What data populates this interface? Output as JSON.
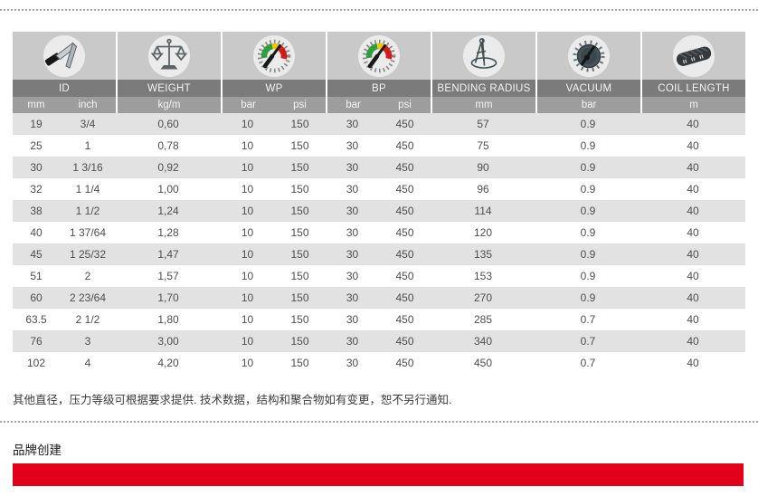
{
  "table": {
    "columns": [
      {
        "label": "ID",
        "units": [
          "mm",
          "inch"
        ],
        "icon": "caliper-icon"
      },
      {
        "label": "WEIGHT",
        "units": [
          "kg/m"
        ],
        "icon": "scale-icon"
      },
      {
        "label": "WP",
        "units": [
          "bar",
          "psi"
        ],
        "icon": "pressure-gauge-icon"
      },
      {
        "label": "BP",
        "units": [
          "bar",
          "psi"
        ],
        "icon": "pressure-gauge-icon"
      },
      {
        "label": "BENDING RADIUS",
        "units": [
          "mm"
        ],
        "icon": "compass-icon"
      },
      {
        "label": "VACUUM",
        "units": [
          "bar"
        ],
        "icon": "vacuum-gauge-icon"
      },
      {
        "label": "COIL LENGTH",
        "units": [
          "m"
        ],
        "icon": "coil-icon"
      }
    ],
    "rows": [
      [
        "19",
        "3/4",
        "0,60",
        "10",
        "150",
        "30",
        "450",
        "57",
        "0.9",
        "40"
      ],
      [
        "25",
        "1",
        "0,78",
        "10",
        "150",
        "30",
        "450",
        "75",
        "0.9",
        "40"
      ],
      [
        "30",
        "1 3/16",
        "0,92",
        "10",
        "150",
        "30",
        "450",
        "90",
        "0.9",
        "40"
      ],
      [
        "32",
        "1 1/4",
        "1,00",
        "10",
        "150",
        "30",
        "450",
        "96",
        "0.9",
        "40"
      ],
      [
        "38",
        "1 1/2",
        "1,24",
        "10",
        "150",
        "30",
        "450",
        "114",
        "0.9",
        "40"
      ],
      [
        "40",
        "1 37/64",
        "1,28",
        "10",
        "150",
        "30",
        "450",
        "120",
        "0.9",
        "40"
      ],
      [
        "45",
        "1 25/32",
        "1,47",
        "10",
        "150",
        "30",
        "450",
        "135",
        "0.9",
        "40"
      ],
      [
        "51",
        "2",
        "1,57",
        "10",
        "150",
        "30",
        "450",
        "153",
        "0.9",
        "40"
      ],
      [
        "60",
        "2 23/64",
        "1,70",
        "10",
        "150",
        "30",
        "450",
        "270",
        "0.9",
        "40"
      ],
      [
        "63.5",
        "2 1/2",
        "1,80",
        "10",
        "150",
        "30",
        "450",
        "285",
        "0.7",
        "40"
      ],
      [
        "76",
        "3",
        "3,00",
        "10",
        "150",
        "30",
        "450",
        "340",
        "0.7",
        "40"
      ],
      [
        "102",
        "4",
        "4,20",
        "10",
        "150",
        "30",
        "450",
        "450",
        "0.7",
        "40"
      ]
    ]
  },
  "note": "其他直径，压力等级可根据要求提供. 技术数据，结构和聚合物如有变更，恕不另行通知.",
  "brand_heading": "品牌创建",
  "colors": {
    "accent_red": "#e2001a",
    "header_dark": "#7b7b7b",
    "header_mid": "#9d9d9d",
    "icon_band": "#c9c9c9",
    "row_alt": "#e2e2e2"
  }
}
